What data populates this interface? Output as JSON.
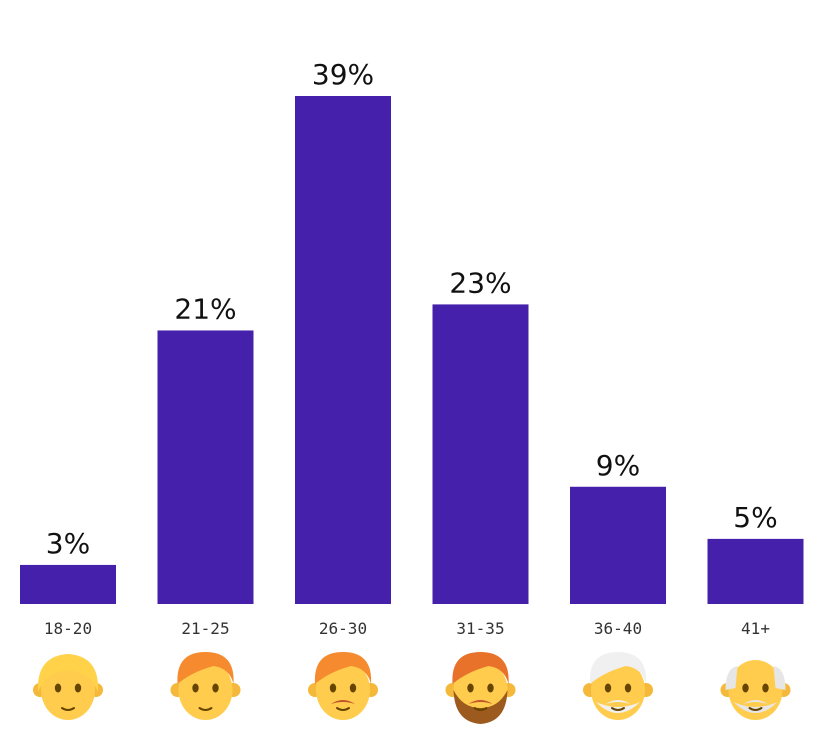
{
  "chart_data": {
    "type": "bar",
    "categories": [
      "18-20",
      "21-25",
      "26-30",
      "31-35",
      "36-40",
      "41+"
    ],
    "values": [
      3,
      21,
      39,
      23,
      9,
      5
    ],
    "value_labels": [
      "3%",
      "21%",
      "39%",
      "23%",
      "9%",
      "5%"
    ],
    "unit": "%",
    "ylim": [
      0,
      39
    ],
    "grid": false,
    "bar_color": "#4520AA",
    "icons": [
      "child-face-icon",
      "young-man-face-icon",
      "man-mustache-face-icon",
      "bearded-man-face-icon",
      "older-man-face-icon",
      "old-man-face-icon"
    ]
  }
}
